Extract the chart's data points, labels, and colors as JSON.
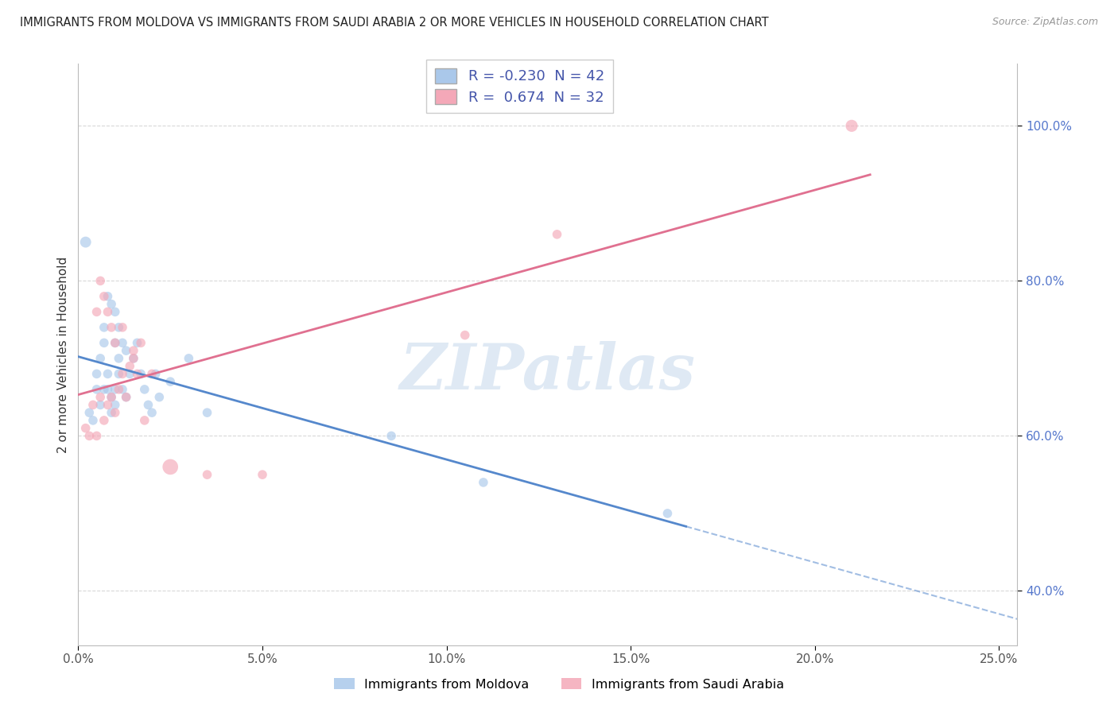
{
  "title": "IMMIGRANTS FROM MOLDOVA VS IMMIGRANTS FROM SAUDI ARABIA 2 OR MORE VEHICLES IN HOUSEHOLD CORRELATION CHART",
  "source": "Source: ZipAtlas.com",
  "xlabel_vals": [
    0.0,
    5.0,
    10.0,
    15.0,
    20.0,
    25.0
  ],
  "ylabel_vals": [
    40.0,
    60.0,
    80.0,
    100.0
  ],
  "xmin": 0.0,
  "xmax": 25.5,
  "ymin": 33.0,
  "ymax": 108.0,
  "moldova_label": "Immigrants from Moldova",
  "saudi_label": "Immigrants from Saudi Arabia",
  "moldova_color": "#aac8ea",
  "saudi_color": "#f4a8b8",
  "moldova_line_color": "#5588cc",
  "saudi_line_color": "#e07090",
  "moldova_R": -0.23,
  "moldova_N": 42,
  "saudi_R": 0.674,
  "saudi_N": 32,
  "watermark_text": "ZIPatlas",
  "background_color": "#ffffff",
  "grid_color": "#d8d8d8",
  "moldova_solid_xmax": 16.5,
  "moldova_x": [
    0.2,
    0.3,
    0.4,
    0.5,
    0.5,
    0.6,
    0.7,
    0.7,
    0.8,
    0.8,
    0.9,
    0.9,
    1.0,
    1.0,
    1.0,
    1.1,
    1.1,
    1.2,
    1.2,
    1.3,
    1.3,
    1.4,
    1.5,
    1.6,
    1.7,
    1.8,
    1.9,
    2.0,
    2.2,
    2.5,
    3.0,
    3.5,
    0.6,
    0.7,
    0.8,
    0.9,
    1.0,
    1.1,
    2.1,
    8.5,
    11.0,
    16.0
  ],
  "moldova_y": [
    85,
    63,
    62,
    66,
    68,
    70,
    72,
    74,
    66,
    78,
    65,
    77,
    64,
    72,
    76,
    68,
    74,
    72,
    66,
    71,
    65,
    68,
    70,
    72,
    68,
    66,
    64,
    63,
    65,
    67,
    70,
    63,
    64,
    66,
    68,
    63,
    66,
    70,
    68,
    60,
    54,
    50
  ],
  "moldova_sizes": [
    100,
    70,
    70,
    70,
    70,
    70,
    70,
    70,
    70,
    70,
    70,
    70,
    70,
    70,
    70,
    70,
    70,
    70,
    70,
    70,
    70,
    70,
    70,
    70,
    70,
    70,
    70,
    70,
    70,
    70,
    70,
    70,
    70,
    70,
    70,
    70,
    70,
    70,
    70,
    70,
    70,
    70
  ],
  "saudi_x": [
    0.2,
    0.3,
    0.4,
    0.5,
    0.6,
    0.7,
    0.8,
    0.9,
    1.0,
    1.1,
    1.2,
    1.3,
    1.4,
    1.5,
    1.6,
    1.7,
    1.8,
    2.0,
    2.5,
    0.5,
    0.6,
    0.7,
    0.8,
    0.9,
    1.0,
    1.2,
    1.5,
    3.5,
    5.0,
    10.5,
    13.0,
    21.0
  ],
  "saudi_y": [
    61,
    60,
    64,
    60,
    65,
    62,
    64,
    65,
    63,
    66,
    68,
    65,
    69,
    70,
    68,
    72,
    62,
    68,
    56,
    76,
    80,
    78,
    76,
    74,
    72,
    74,
    71,
    55,
    55,
    73,
    86,
    100
  ],
  "saudi_sizes": [
    70,
    70,
    70,
    70,
    70,
    70,
    70,
    70,
    70,
    70,
    70,
    70,
    70,
    70,
    70,
    70,
    70,
    70,
    200,
    70,
    70,
    70,
    70,
    70,
    70,
    70,
    70,
    70,
    70,
    70,
    70,
    120
  ]
}
